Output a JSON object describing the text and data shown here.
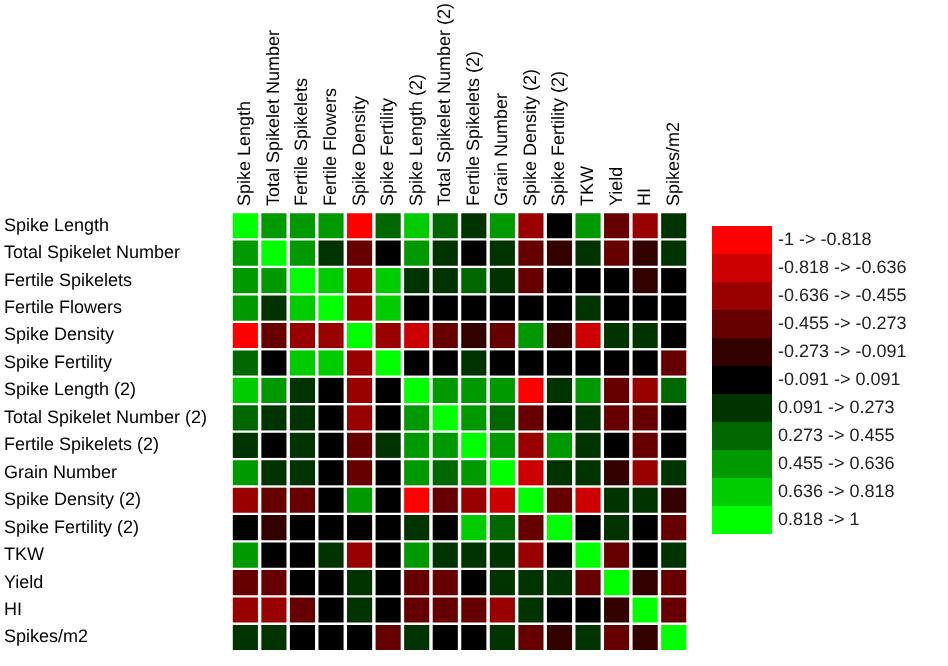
{
  "chart_data": {
    "type": "heatmap",
    "categories": [
      "Spike Length",
      "Total Spikelet Number",
      "Fertile Spikelets",
      "Fertile Flowers",
      "Spike Density",
      "Spike Fertility",
      "Spike Length (2)",
      "Total Spikelet Number (2)",
      "Fertile Spikelets (2)",
      "Grain Number",
      "Spike Density (2)",
      "Spike Fertility (2)",
      "TKW",
      "Yield",
      "HI",
      "Spikes/m2"
    ],
    "y_categories": [
      "Spike Length",
      "Total Spikelet Number",
      "Fertile Spikelets",
      "Fertile Flowers",
      "Spike Density",
      "Spike Fertility",
      "Spike Length (2)",
      "Total Spikelet Number (2)",
      "Fertile Spikelets (2)",
      "Grain Number",
      "Spike Density (2)",
      "Spike Fertility (2)",
      "TKW",
      "Yield",
      "HI",
      "Spikes/m2"
    ],
    "cells": [
      [
        0.909,
        0.545,
        0.545,
        0.545,
        -0.909,
        0.364,
        0.727,
        0.364,
        0.182,
        0.545,
        -0.545,
        0,
        0.545,
        -0.364,
        -0.545,
        0.182
      ],
      [
        0.545,
        0.909,
        0.545,
        0.182,
        -0.364,
        0,
        0.545,
        0.182,
        0,
        0.182,
        -0.364,
        -0.182,
        0.182,
        -0.364,
        -0.182,
        0.182
      ],
      [
        0.545,
        0.545,
        0.909,
        0.727,
        -0.545,
        0.727,
        0.182,
        0.182,
        0.364,
        0.182,
        -0.364,
        0,
        0,
        0,
        -0.182,
        0
      ],
      [
        0.545,
        0.182,
        0.727,
        0.909,
        -0.545,
        0.727,
        0,
        0,
        0,
        0,
        0,
        0,
        0.182,
        0,
        0,
        0
      ],
      [
        -0.909,
        -0.364,
        -0.545,
        -0.545,
        0.909,
        -0.545,
        -0.727,
        -0.364,
        -0.182,
        -0.364,
        0.545,
        -0.182,
        -0.727,
        0.182,
        0.182,
        0
      ],
      [
        0.364,
        0,
        0.727,
        0.727,
        -0.545,
        0.909,
        0,
        0,
        0.182,
        0,
        0,
        0,
        0,
        0,
        0,
        -0.364
      ],
      [
        0.727,
        0.545,
        0.182,
        0,
        -0.545,
        0,
        0.909,
        0.545,
        0.545,
        0.545,
        -0.909,
        0.182,
        0.545,
        -0.364,
        -0.545,
        0.364
      ],
      [
        0.364,
        0.182,
        0.182,
        0,
        -0.545,
        0,
        0.545,
        0.909,
        0.545,
        0.364,
        -0.364,
        0,
        0.182,
        -0.364,
        -0.364,
        0
      ],
      [
        0.182,
        0,
        0.182,
        0,
        -0.364,
        0.182,
        0.545,
        0.545,
        0.909,
        0.545,
        -0.545,
        0.545,
        0.182,
        0,
        -0.364,
        0
      ],
      [
        0.545,
        0.182,
        0.182,
        0,
        -0.364,
        0,
        0.545,
        0.364,
        0.545,
        0.909,
        -0.727,
        0.182,
        0.182,
        -0.182,
        -0.545,
        0.182
      ],
      [
        -0.545,
        -0.364,
        -0.364,
        0,
        0.545,
        0,
        -0.909,
        -0.364,
        -0.545,
        -0.727,
        0.909,
        -0.364,
        -0.727,
        0.182,
        0.182,
        -0.182
      ],
      [
        0,
        -0.182,
        0,
        0,
        0,
        0,
        0.182,
        0,
        0.727,
        0.364,
        -0.364,
        0.909,
        0,
        0.182,
        0,
        -0.364
      ],
      [
        0.545,
        0,
        0,
        0.182,
        -0.545,
        0,
        0.545,
        0.182,
        0.182,
        0.182,
        -0.545,
        0,
        0.909,
        -0.364,
        0,
        0.182
      ],
      [
        -0.364,
        -0.364,
        0,
        0,
        0.182,
        0,
        -0.364,
        -0.364,
        0,
        0.182,
        0.182,
        0.182,
        -0.364,
        0.909,
        -0.182,
        -0.364
      ],
      [
        -0.545,
        -0.545,
        -0.364,
        0,
        0.182,
        0,
        -0.364,
        -0.364,
        -0.364,
        -0.545,
        0.182,
        0,
        0,
        -0.182,
        0.909,
        -0.364
      ],
      [
        0.182,
        0.182,
        0,
        0,
        0,
        -0.364,
        0.182,
        0,
        0,
        0.182,
        -0.364,
        -0.182,
        0.182,
        -0.364,
        -0.182,
        0.909
      ]
    ],
    "clim": [
      -1,
      1
    ],
    "cticks": [
      {
        "value": -0.909,
        "label": "-1 -> -0.818"
      },
      {
        "value": -0.727,
        "label": "-0.818 -> -0.636"
      },
      {
        "value": -0.545,
        "label": "-0.636 -> -0.455"
      },
      {
        "value": -0.364,
        "label": "-0.455 -> -0.273"
      },
      {
        "value": -0.182,
        "label": "-0.273 -> -0.091"
      },
      {
        "value": 0,
        "label": "-0.091 -> 0.091"
      },
      {
        "value": 0.182,
        "label": "0.091 -> 0.273"
      },
      {
        "value": 0.364,
        "label": "0.273 -> 0.455"
      },
      {
        "value": 0.545,
        "label": "0.455 -> 0.636"
      },
      {
        "value": 0.727,
        "label": "0.636 -> 0.818"
      },
      {
        "value": 0.909,
        "label": "0.818 -> 1"
      }
    ]
  }
}
